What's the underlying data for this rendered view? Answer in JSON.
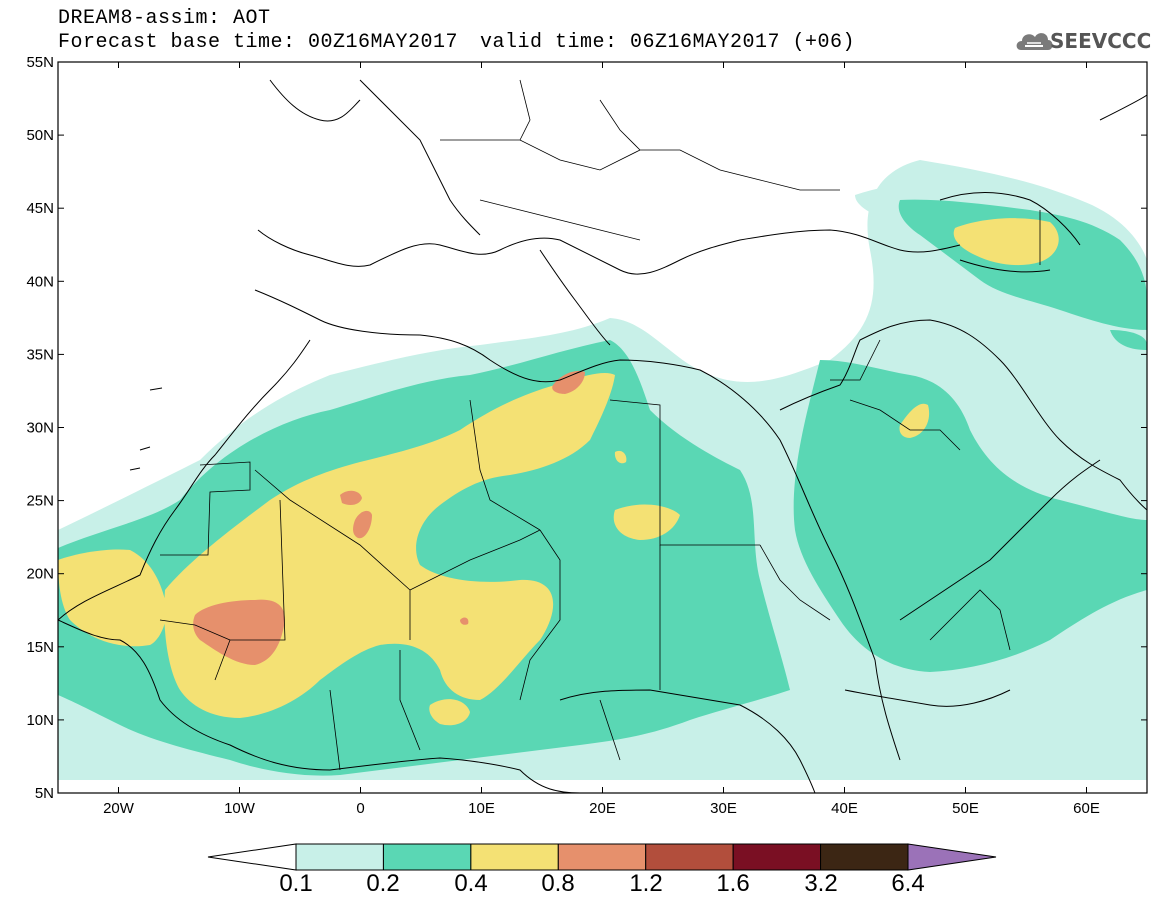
{
  "header": {
    "title": "DREAM8-assim: AOT",
    "base_time": "Forecast base time: 00Z16MAY2017",
    "valid_time": "valid time: 06Z16MAY2017 (+06)",
    "logo_text": "SEEVCCC"
  },
  "map": {
    "region": "North Africa, Europe, Middle East",
    "lon_range": [
      -25,
      65
    ],
    "lat_range": [
      5,
      55
    ],
    "lat_ticks": [
      "5N",
      "10N",
      "15N",
      "20N",
      "25N",
      "30N",
      "35N",
      "40N",
      "45N",
      "50N",
      "55N"
    ],
    "lon_ticks": [
      "20W",
      "10W",
      "0",
      "10E",
      "20E",
      "30E",
      "40E",
      "50E",
      "60E"
    ]
  },
  "colorbar": {
    "labels": [
      "0.1",
      "0.2",
      "0.4",
      "0.8",
      "1.2",
      "1.6",
      "3.2",
      "6.4"
    ],
    "colors": [
      "#c8f0e8",
      "#5ad7b4",
      "#f4e174",
      "#e6906c",
      "#b24e3c",
      "#7a0f23",
      "#3c2614",
      "#9b72b8"
    ]
  }
}
